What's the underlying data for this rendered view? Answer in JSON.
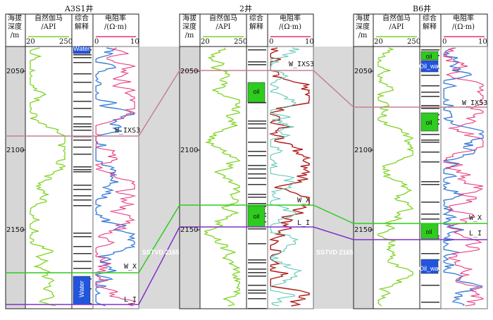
{
  "wells": [
    {
      "name": "A3S1井",
      "markers": [
        "W_IXS3",
        "W_X",
        "L_I"
      ],
      "fluids": [
        "Water",
        "Water"
      ]
    },
    {
      "name": "2井",
      "markers": [
        "W_IXS3",
        "W_X",
        "L_I"
      ],
      "fluids": [
        "oil",
        "oil"
      ]
    },
    {
      "name": "B6井",
      "markers": [
        "W_IXS3",
        "W_X",
        "L_I"
      ],
      "fluids": [
        "oil",
        "Oil_wat",
        "oil",
        "Oil_wat"
      ]
    }
  ],
  "headers": {
    "depth": "海拔\n深度\n/m",
    "gr": "自然伽马\n/API",
    "interp": "综合\n解释",
    "res": "电阻率\n/(Ω·m)",
    "gr_min": "20",
    "gr_max": "250",
    "res_min": "0",
    "res_max": "10"
  },
  "depth_ticks": [
    "2050",
    "2100",
    "2150"
  ],
  "sstvd_label": "SSTVD 2165",
  "colors": {
    "gamma": "#7ed321",
    "resistivity": "#e8317a",
    "res_deep": "#b01515",
    "res_shallow": "#5cc6b4",
    "res_blue": "#3b7fd9",
    "oil": "#2ecc1f",
    "water": "#2255dd",
    "ixs3_line": "#c4808f",
    "wx_line": "#2ecc1f",
    "li_line": "#8030c8"
  }
}
